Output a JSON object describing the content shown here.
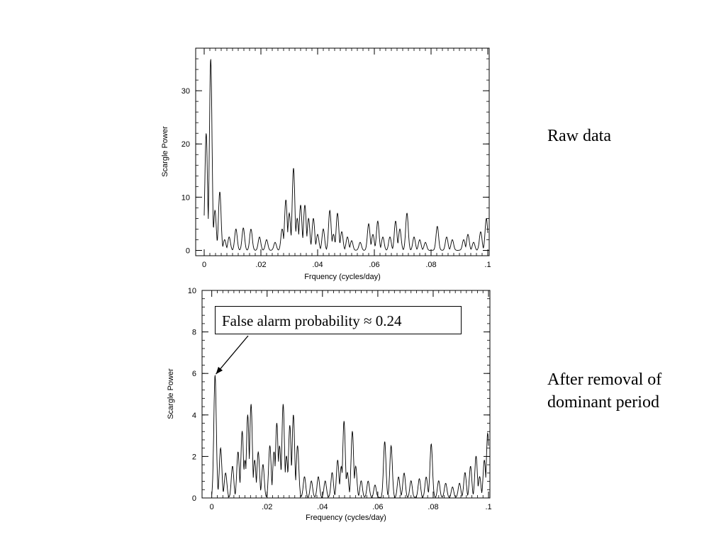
{
  "labels": {
    "raw": "Raw data",
    "after_line1": "After removal of",
    "after_line2": "dominant period"
  },
  "annotation": {
    "text": "False alarm probability ≈ 0.24",
    "points_to": {
      "x": 0.001,
      "y": 5.9
    }
  },
  "chart_data": [
    {
      "type": "line",
      "title": "",
      "xlabel": "Frquency (cycles/day)",
      "ylabel": "Scargle Power",
      "xlim": [
        -0.003,
        0.1005
      ],
      "ylim": [
        -1.0,
        38.0
      ],
      "xticks": [
        0,
        0.02,
        0.04,
        0.06,
        0.08,
        0.1
      ],
      "xticklabels": [
        "0",
        ".02",
        ".04",
        ".06",
        ".08",
        ".1"
      ],
      "yticks": [
        0,
        10,
        20,
        30
      ],
      "yticklabels": [
        "0",
        "10",
        "20",
        "30"
      ],
      "grid": false,
      "peaks": [
        [
          0.0007,
          22.0
        ],
        [
          0.0023,
          36.0
        ],
        [
          0.0038,
          7.5
        ],
        [
          0.0055,
          11.0
        ],
        [
          0.0072,
          2.0
        ],
        [
          0.0088,
          2.5
        ],
        [
          0.0112,
          4.0
        ],
        [
          0.0138,
          4.2
        ],
        [
          0.0165,
          4.0
        ],
        [
          0.0195,
          2.5
        ],
        [
          0.022,
          2.0
        ],
        [
          0.025,
          1.5
        ],
        [
          0.0275,
          4.0
        ],
        [
          0.0288,
          9.5
        ],
        [
          0.03,
          7.0
        ],
        [
          0.0315,
          15.5
        ],
        [
          0.0328,
          6.0
        ],
        [
          0.034,
          8.5
        ],
        [
          0.0355,
          8.5
        ],
        [
          0.0368,
          6.0
        ],
        [
          0.0385,
          6.0
        ],
        [
          0.04,
          3.0
        ],
        [
          0.042,
          4.0
        ],
        [
          0.0443,
          7.5
        ],
        [
          0.0456,
          3.0
        ],
        [
          0.047,
          7.0
        ],
        [
          0.0485,
          3.5
        ],
        [
          0.0505,
          2.5
        ],
        [
          0.052,
          1.8
        ],
        [
          0.055,
          1.5
        ],
        [
          0.058,
          5.0
        ],
        [
          0.0595,
          3.0
        ],
        [
          0.0612,
          5.5
        ],
        [
          0.063,
          2.5
        ],
        [
          0.0655,
          2.5
        ],
        [
          0.0675,
          5.5
        ],
        [
          0.069,
          4.0
        ],
        [
          0.0715,
          7.0
        ],
        [
          0.074,
          2.5
        ],
        [
          0.076,
          2.0
        ],
        [
          0.078,
          1.5
        ],
        [
          0.0822,
          4.5
        ],
        [
          0.0855,
          2.5
        ],
        [
          0.0875,
          2.0
        ],
        [
          0.0915,
          2.0
        ],
        [
          0.093,
          3.0
        ],
        [
          0.095,
          1.5
        ],
        [
          0.0975,
          3.5
        ],
        [
          0.0995,
          6.0
        ]
      ]
    },
    {
      "type": "line",
      "title": "",
      "xlabel": "Frequency (cycles/day)",
      "ylabel": "Scargle Power",
      "xlim": [
        -0.0035,
        0.1005
      ],
      "ylim": [
        0,
        10
      ],
      "xticks": [
        0,
        0.02,
        0.04,
        0.06,
        0.08,
        0.1
      ],
      "xticklabels": [
        "0",
        ".02",
        ".04",
        ".06",
        ".08",
        ".1"
      ],
      "yticks": [
        0,
        2,
        4,
        6,
        8,
        10
      ],
      "yticklabels": [
        "0",
        "2",
        "4",
        "6",
        "8",
        "10"
      ],
      "grid": false,
      "peaks": [
        [
          0.0012,
          5.9
        ],
        [
          0.0032,
          2.4
        ],
        [
          0.005,
          1.2
        ],
        [
          0.0075,
          1.5
        ],
        [
          0.0095,
          2.2
        ],
        [
          0.011,
          3.2
        ],
        [
          0.012,
          1.8
        ],
        [
          0.013,
          4.0
        ],
        [
          0.0142,
          4.5
        ],
        [
          0.0155,
          1.8
        ],
        [
          0.0168,
          2.2
        ],
        [
          0.0185,
          1.6
        ],
        [
          0.021,
          2.5
        ],
        [
          0.0225,
          2.2
        ],
        [
          0.0235,
          3.6
        ],
        [
          0.0245,
          2.5
        ],
        [
          0.0258,
          4.5
        ],
        [
          0.027,
          2.0
        ],
        [
          0.0282,
          3.5
        ],
        [
          0.0295,
          4.0
        ],
        [
          0.031,
          2.5
        ],
        [
          0.0335,
          1.0
        ],
        [
          0.036,
          0.8
        ],
        [
          0.0385,
          1.0
        ],
        [
          0.041,
          0.8
        ],
        [
          0.0435,
          1.2
        ],
        [
          0.0455,
          1.8
        ],
        [
          0.0468,
          1.5
        ],
        [
          0.0478,
          3.7
        ],
        [
          0.049,
          1.2
        ],
        [
          0.0508,
          3.2
        ],
        [
          0.052,
          1.5
        ],
        [
          0.054,
          0.8
        ],
        [
          0.0565,
          0.8
        ],
        [
          0.059,
          0.6
        ],
        [
          0.0625,
          2.7
        ],
        [
          0.0648,
          2.5
        ],
        [
          0.0675,
          1.0
        ],
        [
          0.0695,
          1.2
        ],
        [
          0.072,
          0.8
        ],
        [
          0.075,
          0.9
        ],
        [
          0.0775,
          1.0
        ],
        [
          0.0793,
          2.6
        ],
        [
          0.082,
          0.8
        ],
        [
          0.0845,
          0.7
        ],
        [
          0.087,
          0.5
        ],
        [
          0.0895,
          0.7
        ],
        [
          0.0915,
          1.2
        ],
        [
          0.0935,
          1.5
        ],
        [
          0.0955,
          2.0
        ],
        [
          0.0968,
          1.0
        ],
        [
          0.0985,
          1.8
        ],
        [
          0.0997,
          3.1
        ]
      ]
    }
  ]
}
